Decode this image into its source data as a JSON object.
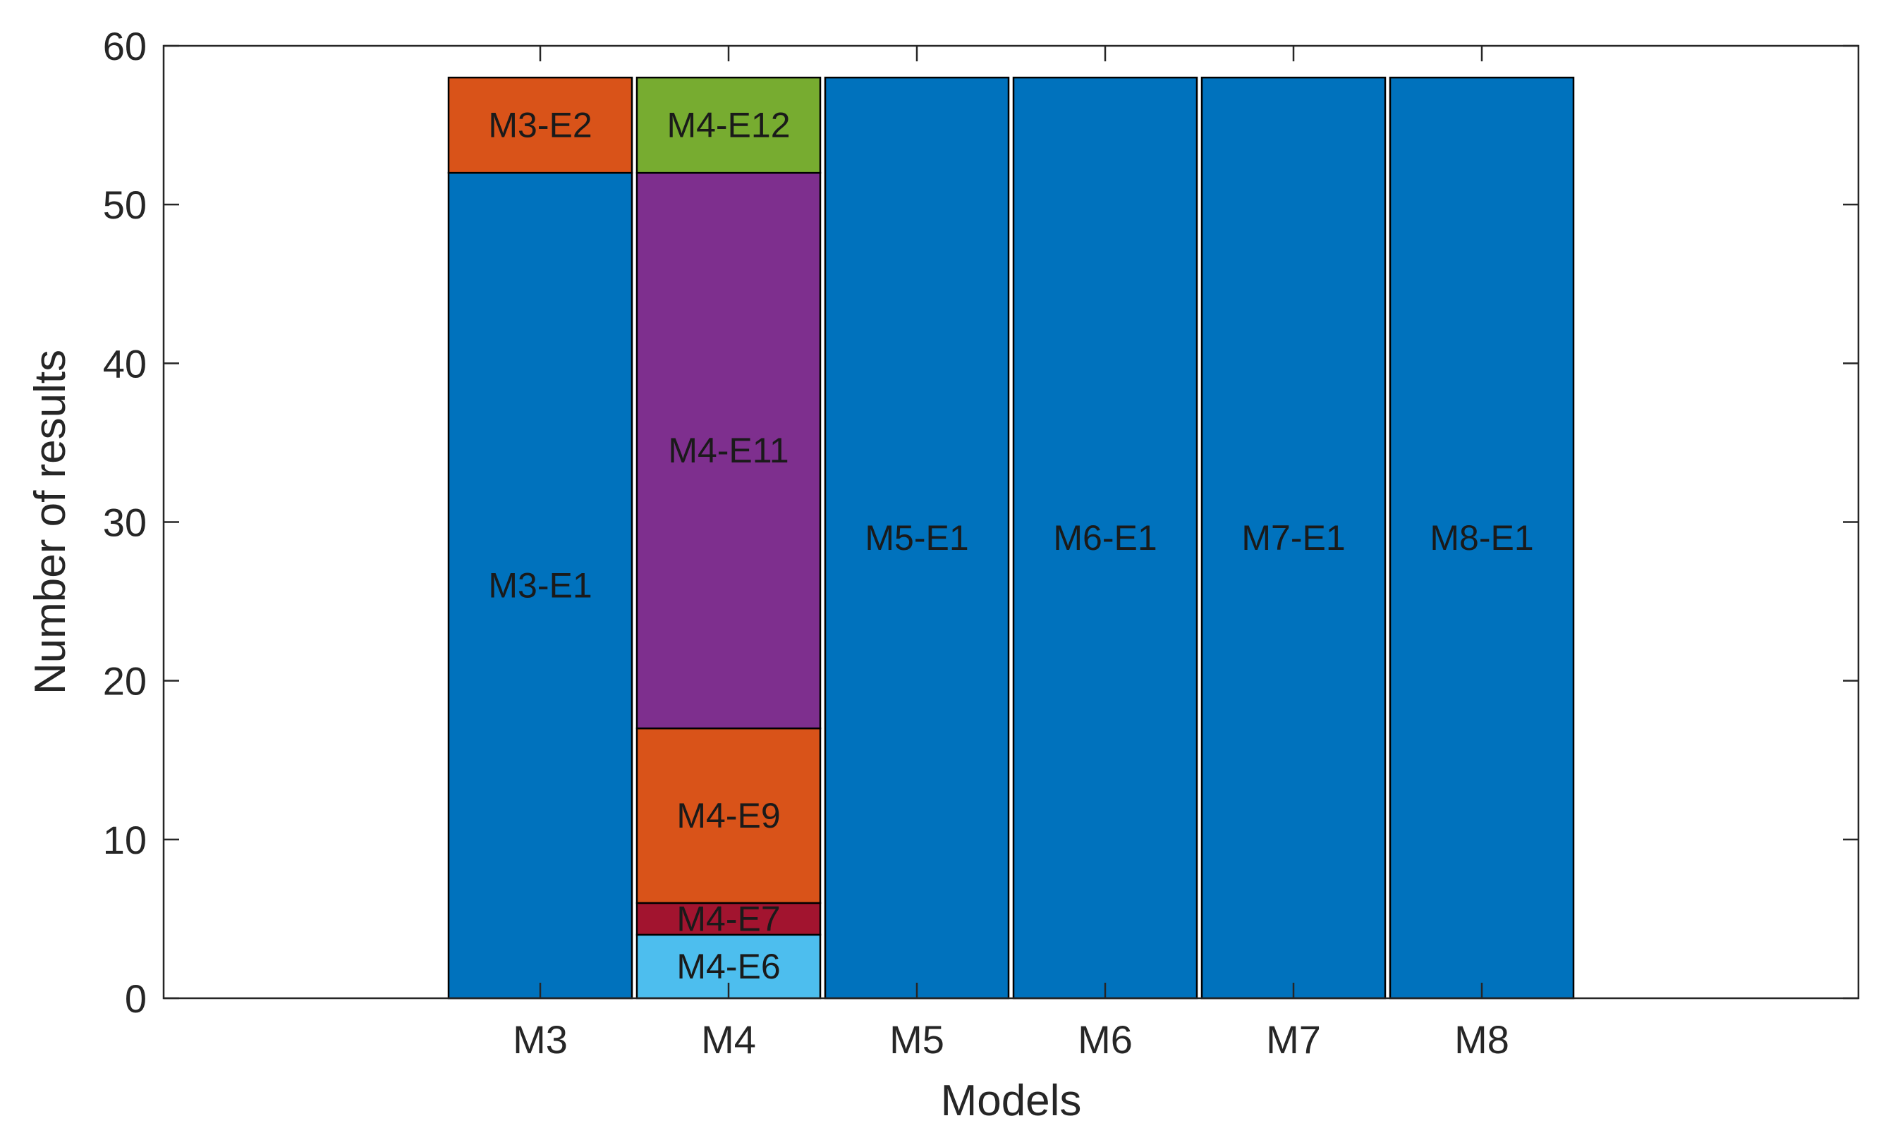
{
  "chart_data": {
    "type": "bar",
    "stacked": true,
    "title": "",
    "xlabel": "Models",
    "ylabel": "Number of results",
    "ylim": [
      0,
      60
    ],
    "xlim": [
      0,
      9
    ],
    "yticks": [
      0,
      10,
      20,
      30,
      40,
      50,
      60
    ],
    "grid": false,
    "categories": [
      "M3",
      "M4",
      "M5",
      "M6",
      "M7",
      "M8"
    ],
    "x": [
      2,
      3,
      4,
      5,
      6,
      7
    ],
    "colors": {
      "blue": "#0072BD",
      "orange": "#D95319",
      "purple": "#7E2F8E",
      "green": "#77AC30",
      "lightblue": "#4DBEEE",
      "darkred": "#A2142F",
      "edge": "#000000",
      "label": "#1a1a1a"
    },
    "stacks": [
      {
        "category": "M3",
        "segments": [
          {
            "label": "M3-E1",
            "value": 52,
            "color": "#0072BD"
          },
          {
            "label": "M3-E2",
            "value": 6,
            "color": "#D95319"
          }
        ]
      },
      {
        "category": "M4",
        "segments": [
          {
            "label": "M4-E6",
            "value": 4,
            "color": "#4DBEEE"
          },
          {
            "label": "M4-E7",
            "value": 2,
            "color": "#A2142F"
          },
          {
            "label": "M4-E9",
            "value": 11,
            "color": "#D95319"
          },
          {
            "label": "M4-E11",
            "value": 35,
            "color": "#7E2F8E"
          },
          {
            "label": "M4-E12",
            "value": 6,
            "color": "#77AC30"
          }
        ]
      },
      {
        "category": "M5",
        "segments": [
          {
            "label": "M5-E1",
            "value": 58,
            "color": "#0072BD"
          }
        ]
      },
      {
        "category": "M6",
        "segments": [
          {
            "label": "M6-E1",
            "value": 58,
            "color": "#0072BD"
          }
        ]
      },
      {
        "category": "M7",
        "segments": [
          {
            "label": "M7-E1",
            "value": 58,
            "color": "#0072BD"
          }
        ]
      },
      {
        "category": "M8",
        "segments": [
          {
            "label": "M8-E1",
            "value": 58,
            "color": "#0072BD"
          }
        ]
      }
    ]
  }
}
